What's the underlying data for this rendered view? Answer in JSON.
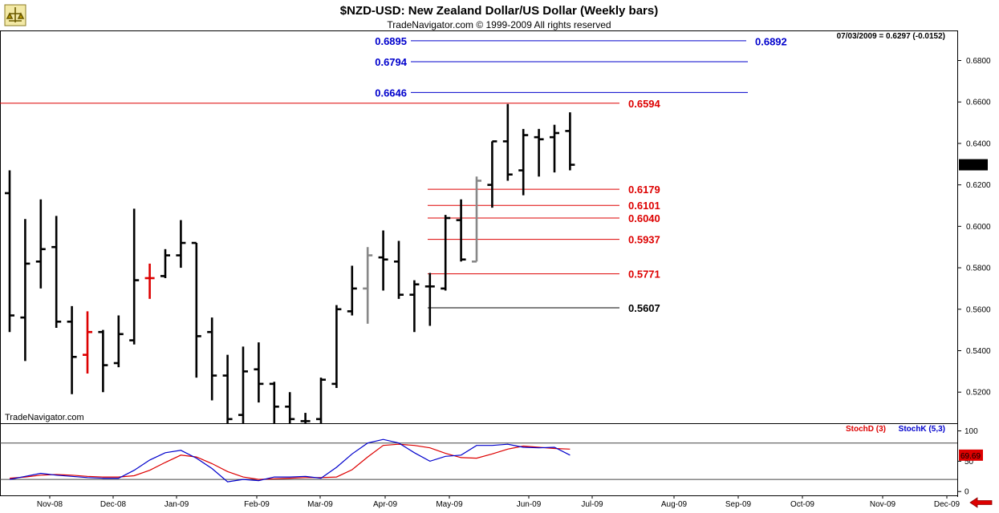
{
  "header": {
    "title": "$NZD-USD:  New Zealand Dollar/US Dollar  (Weekly bars)",
    "subtitle": "TradeNavigator.com © 1999-2009 All rights reserved",
    "quote": "07/03/2009 = 0.6297 (-0.0152)",
    "credit": "TradeNavigator.com"
  },
  "colors": {
    "blue": "#0000cc",
    "red": "#dd0000",
    "black": "#000000",
    "gray": "#888888",
    "panel_border": "#000000",
    "arrow": "#dd0000"
  },
  "icons": {
    "logo": "trade-navigator-logo-icon",
    "arrow": "left-arrow-icon"
  },
  "chart_data": [
    {
      "type": "ohlc",
      "title": "$NZD-USD:  New Zealand Dollar/US Dollar  (Weekly bars)",
      "ylim": [
        0.505,
        0.6945
      ],
      "y_ticks": [
        "0.5200",
        "0.5400",
        "0.5600",
        "0.5800",
        "0.6000",
        "0.6200",
        "0.6400",
        "0.6600",
        "0.6800"
      ],
      "last_price_label": "0.6297",
      "x_ticks": [
        "Nov-08",
        "Dec-08",
        "Jan-09",
        "Feb-09",
        "Mar-09",
        "Apr-09",
        "May-09",
        "Jun-09",
        "Jul-09",
        "Aug-09",
        "Sep-09",
        "Oct-09",
        "Nov-09",
        "Dec-09"
      ],
      "bars": [
        {
          "o": 0.616,
          "h": 0.627,
          "l": 0.549,
          "c": 0.557,
          "color": "black"
        },
        {
          "o": 0.556,
          "h": 0.6035,
          "l": 0.535,
          "c": 0.582,
          "color": "black"
        },
        {
          "o": 0.583,
          "h": 0.613,
          "l": 0.57,
          "c": 0.589,
          "color": "black"
        },
        {
          "o": 0.59,
          "h": 0.605,
          "l": 0.551,
          "c": 0.554,
          "color": "black"
        },
        {
          "o": 0.554,
          "h": 0.5615,
          "l": 0.519,
          "c": 0.537,
          "color": "black"
        },
        {
          "o": 0.538,
          "h": 0.559,
          "l": 0.529,
          "c": 0.549,
          "color": "red"
        },
        {
          "o": 0.549,
          "h": 0.55,
          "l": 0.52,
          "c": 0.533,
          "color": "black"
        },
        {
          "o": 0.534,
          "h": 0.557,
          "l": 0.532,
          "c": 0.548,
          "color": "black"
        },
        {
          "o": 0.545,
          "h": 0.6085,
          "l": 0.543,
          "c": 0.574,
          "color": "black"
        },
        {
          "o": 0.575,
          "h": 0.582,
          "l": 0.565,
          "c": 0.575,
          "color": "red"
        },
        {
          "o": 0.576,
          "h": 0.589,
          "l": 0.575,
          "c": 0.586,
          "color": "black"
        },
        {
          "o": 0.586,
          "h": 0.603,
          "l": 0.58,
          "c": 0.592,
          "color": "black"
        },
        {
          "o": 0.592,
          "h": 0.592,
          "l": 0.527,
          "c": 0.547,
          "color": "black"
        },
        {
          "o": 0.549,
          "h": 0.556,
          "l": 0.516,
          "c": 0.528,
          "color": "black"
        },
        {
          "o": 0.528,
          "h": 0.538,
          "l": 0.505,
          "c": 0.507,
          "color": "black"
        },
        {
          "o": 0.509,
          "h": 0.542,
          "l": 0.505,
          "c": 0.53,
          "color": "black"
        },
        {
          "o": 0.531,
          "h": 0.544,
          "l": 0.515,
          "c": 0.524,
          "color": "black"
        },
        {
          "o": 0.524,
          "h": 0.525,
          "l": 0.505,
          "c": 0.513,
          "color": "black"
        },
        {
          "o": 0.513,
          "h": 0.52,
          "l": 0.505,
          "c": 0.507,
          "color": "black"
        },
        {
          "o": 0.506,
          "h": 0.51,
          "l": 0.505,
          "c": 0.506,
          "color": "black"
        },
        {
          "o": 0.507,
          "h": 0.527,
          "l": 0.505,
          "c": 0.526,
          "color": "black"
        },
        {
          "o": 0.524,
          "h": 0.562,
          "l": 0.522,
          "c": 0.56,
          "color": "black"
        },
        {
          "o": 0.559,
          "h": 0.581,
          "l": 0.557,
          "c": 0.57,
          "color": "black"
        },
        {
          "o": 0.57,
          "h": 0.59,
          "l": 0.553,
          "c": 0.586,
          "color": "gray"
        },
        {
          "o": 0.585,
          "h": 0.598,
          "l": 0.569,
          "c": 0.584,
          "color": "black"
        },
        {
          "o": 0.583,
          "h": 0.593,
          "l": 0.565,
          "c": 0.567,
          "color": "black"
        },
        {
          "o": 0.567,
          "h": 0.574,
          "l": 0.549,
          "c": 0.572,
          "color": "black"
        },
        {
          "o": 0.571,
          "h": 0.5775,
          "l": 0.552,
          "c": 0.571,
          "color": "black"
        },
        {
          "o": 0.57,
          "h": 0.6055,
          "l": 0.569,
          "c": 0.604,
          "color": "black"
        },
        {
          "o": 0.603,
          "h": 0.613,
          "l": 0.583,
          "c": 0.584,
          "color": "black"
        },
        {
          "o": 0.583,
          "h": 0.624,
          "l": 0.583,
          "c": 0.622,
          "color": "gray"
        },
        {
          "o": 0.62,
          "h": 0.641,
          "l": 0.609,
          "c": 0.641,
          "color": "black"
        },
        {
          "o": 0.641,
          "h": 0.659,
          "l": 0.622,
          "c": 0.625,
          "color": "black"
        },
        {
          "o": 0.627,
          "h": 0.647,
          "l": 0.615,
          "c": 0.644,
          "color": "black"
        },
        {
          "o": 0.643,
          "h": 0.647,
          "l": 0.624,
          "c": 0.642,
          "color": "black"
        },
        {
          "o": 0.643,
          "h": 0.649,
          "l": 0.626,
          "c": 0.645,
          "color": "black"
        },
        {
          "o": 0.646,
          "h": 0.655,
          "l": 0.627,
          "c": 0.6297,
          "color": "black"
        }
      ],
      "levels": [
        {
          "label": "0.6895",
          "value": 0.6895,
          "color": "blue"
        },
        {
          "label": "0.6892",
          "value": 0.6892,
          "color": "blue"
        },
        {
          "label": "0.6794",
          "value": 0.6794,
          "color": "blue"
        },
        {
          "label": "0.6646",
          "value": 0.6646,
          "color": "blue"
        },
        {
          "label": "0.6594",
          "value": 0.6594,
          "color": "red"
        },
        {
          "label": "0.6179",
          "value": 0.6179,
          "color": "red"
        },
        {
          "label": "0.6101",
          "value": 0.6101,
          "color": "red"
        },
        {
          "label": "0.6040",
          "value": 0.604,
          "color": "red"
        },
        {
          "label": "0.5937",
          "value": 0.5937,
          "color": "red"
        },
        {
          "label": "0.5771",
          "value": 0.5771,
          "color": "red"
        },
        {
          "label": "0.5607",
          "value": 0.5607,
          "color": "black"
        }
      ]
    },
    {
      "type": "line",
      "ylim": [
        -5,
        110
      ],
      "y_ticks": [
        "0",
        "50",
        "100"
      ],
      "reference_lines": [
        20,
        80
      ],
      "last_value_label": "69.69",
      "series": [
        {
          "name": "StochD (3)",
          "color": "red",
          "values": [
            22,
            24,
            27,
            28,
            27,
            25,
            24,
            24,
            26,
            35,
            48,
            60,
            57,
            46,
            33,
            24,
            20,
            21,
            22,
            23,
            23,
            24,
            36,
            57,
            76,
            78,
            76,
            72,
            63,
            56,
            55,
            62,
            70,
            75,
            73,
            71,
            70
          ]
        },
        {
          "name": "StochK (5,3)",
          "color": "blue",
          "values": [
            20,
            25,
            30,
            27,
            25,
            23,
            22,
            22,
            35,
            52,
            64,
            68,
            55,
            38,
            16,
            20,
            18,
            24,
            24,
            25,
            22,
            40,
            62,
            80,
            86,
            80,
            64,
            50,
            58,
            60,
            76,
            76,
            78,
            73,
            72,
            73,
            60
          ]
        }
      ]
    }
  ]
}
